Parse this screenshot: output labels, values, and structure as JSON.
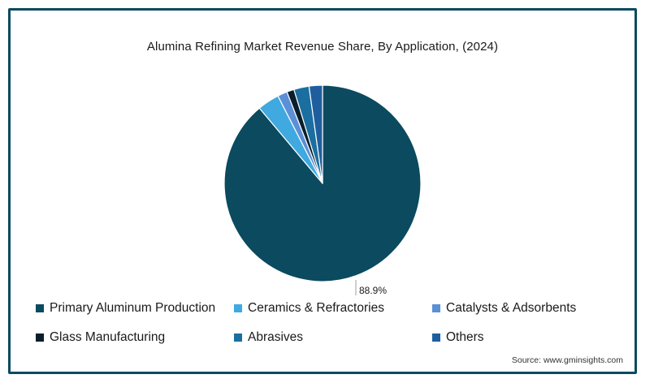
{
  "colors": {
    "frame_border": "#0b4a5f",
    "slice_outline": "#ffffff",
    "leader_line": "#9aa0a6"
  },
  "source": "Source: www.gminsights.com",
  "chart_data": {
    "type": "pie",
    "title": "Alumina Refining Market Revenue Share, By Application, (2024)",
    "start_angle_deg": 0,
    "direction": "clockwise",
    "legend_position": "bottom",
    "slices": [
      {
        "label": "Primary Aluminum Production",
        "value": 88.9,
        "color": "#0b4a5f",
        "data_label": "88.9%"
      },
      {
        "label": "Ceramics & Refractories",
        "value": 3.6,
        "color": "#3fa9e0",
        "data_label": ""
      },
      {
        "label": "Catalysts & Adsorbents",
        "value": 1.6,
        "color": "#5b8fd6",
        "data_label": ""
      },
      {
        "label": "Glass Manufacturing",
        "value": 1.2,
        "color": "#0a1e2b",
        "data_label": ""
      },
      {
        "label": "Abrasives",
        "value": 2.5,
        "color": "#1a6fa0",
        "data_label": ""
      },
      {
        "label": "Others",
        "value": 2.2,
        "color": "#1f5e9e",
        "data_label": ""
      }
    ]
  }
}
